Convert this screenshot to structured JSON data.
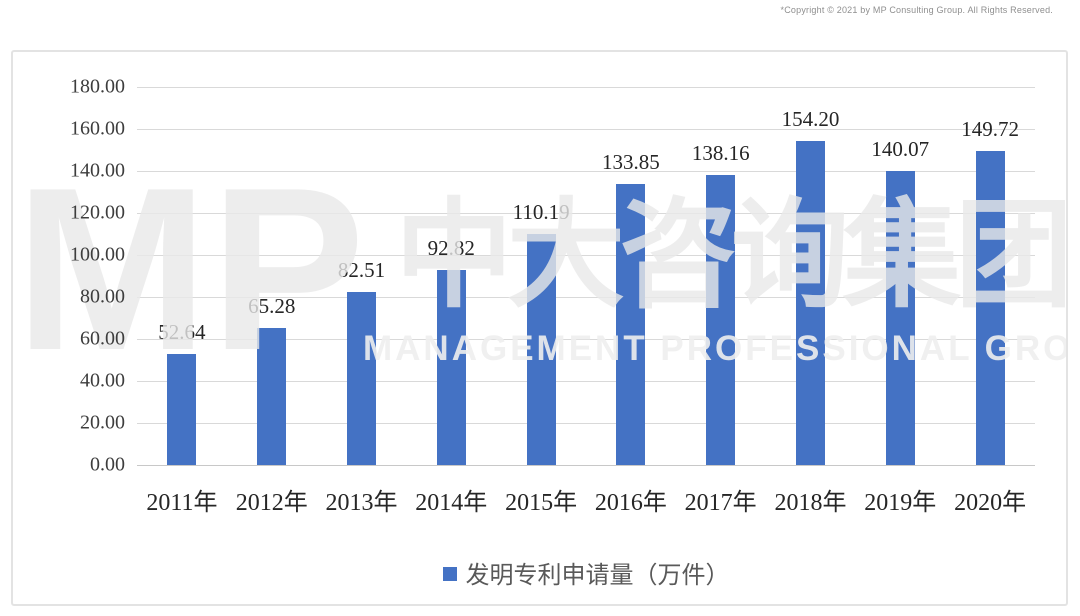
{
  "page": {
    "copyright": "*Copyright © 2021 by MP Consulting Group. All Rights Reserved."
  },
  "watermark": {
    "logo": "MP",
    "chinese": "中大咨询集团",
    "english": "MANAGEMENT PROFESSIONAL GROUP"
  },
  "chart_data": {
    "type": "bar",
    "title": "",
    "xlabel": "",
    "ylabel": "",
    "categories": [
      "2011年",
      "2012年",
      "2013年",
      "2014年",
      "2015年",
      "2016年",
      "2017年",
      "2018年",
      "2019年",
      "2020年"
    ],
    "values": [
      52.64,
      65.28,
      82.51,
      92.82,
      110.19,
      133.85,
      138.16,
      154.2,
      140.07,
      149.72
    ],
    "value_labels": [
      "52.64",
      "65.28",
      "82.51",
      "92.82",
      "110.19",
      "133.85",
      "138.16",
      "154.20",
      "140.07",
      "149.72"
    ],
    "legend_label": "发明专利申请量（万件）",
    "legend_position": "bottom",
    "ylim": [
      0,
      180
    ],
    "ytick_step": 20,
    "ytick_labels": [
      "180.00",
      "160.00",
      "140.00",
      "120.00",
      "100.00",
      "80.00",
      "60.00",
      "40.00",
      "20.00",
      "0.00"
    ],
    "grid": true,
    "bar_color": "#4472C4",
    "gridline_color": "#d9d9d9",
    "label_color": "#262626"
  }
}
